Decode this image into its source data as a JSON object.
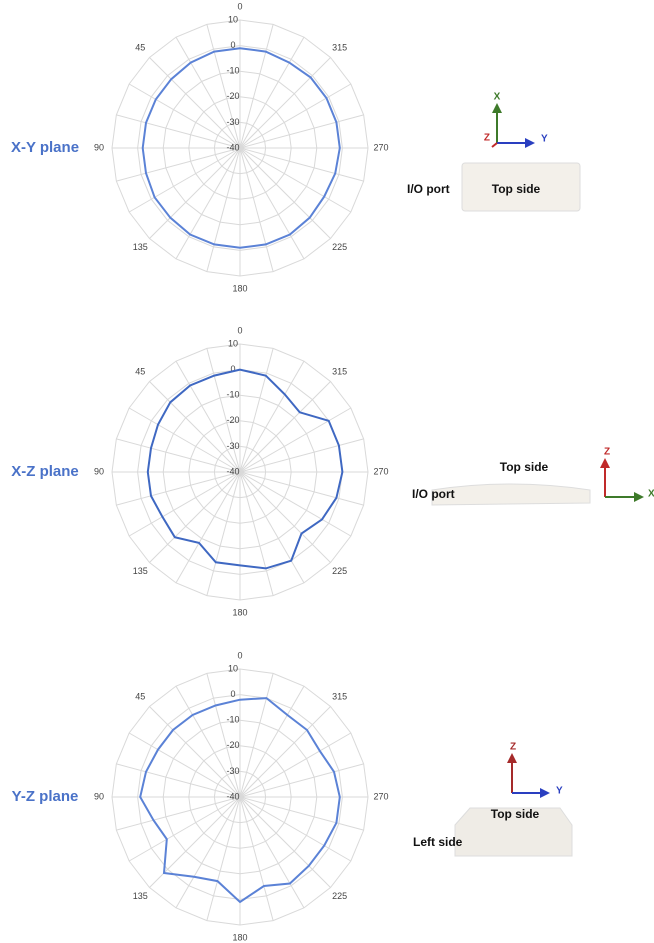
{
  "chart_data": [
    {
      "type": "radar",
      "title": "X-Y plane",
      "color": "#5b82d6",
      "theta": [
        0,
        15,
        30,
        45,
        60,
        75,
        90,
        105,
        120,
        135,
        150,
        165,
        180,
        195,
        210,
        225,
        240,
        255,
        270,
        285,
        300,
        315,
        330,
        345
      ],
      "theta_ticks": [
        0,
        45,
        90,
        135,
        180,
        225,
        270,
        315
      ],
      "values": [
        -1,
        -1,
        -1.5,
        -2,
        -2,
        -2,
        -2,
        -2,
        -1.5,
        -1.5,
        -1,
        -1,
        -1,
        -1,
        -1,
        -1.5,
        -2,
        -1.5,
        -1,
        -1,
        -1,
        -1,
        -1.5,
        -1
      ],
      "rlim": [
        -40,
        10
      ],
      "rticks": [
        10,
        0,
        -10,
        -20,
        -30,
        -40
      ],
      "device_labels": [
        "I/O port",
        "Top side"
      ],
      "axis_letters": [
        "X",
        "Y",
        "Z"
      ]
    },
    {
      "type": "radar",
      "title": "X-Z plane",
      "color": "#3f68c2",
      "theta": [
        0,
        15,
        30,
        45,
        60,
        75,
        90,
        105,
        120,
        135,
        150,
        165,
        180,
        195,
        210,
        225,
        240,
        255,
        270,
        285,
        300,
        315,
        330,
        345
      ],
      "theta_ticks": [
        0,
        45,
        90,
        135,
        180,
        225,
        270,
        315
      ],
      "values": [
        0,
        -1,
        -1,
        -1.5,
        -3,
        -4,
        -4,
        -4,
        -5,
        -4,
        -8,
        -3.5,
        -3.5,
        -1,
        0,
        -6,
        -3,
        -1,
        0,
        0,
        0,
        -7,
        -5,
        -1
      ],
      "rlim": [
        -40,
        10
      ],
      "rticks": [
        10,
        0,
        -10,
        -20,
        -30,
        -40
      ],
      "device_labels": [
        "Top side",
        "I/O port"
      ],
      "axis_letters": [
        "Z",
        "X"
      ]
    },
    {
      "type": "radar",
      "title": "Y-Z plane",
      "color": "#5b82d6",
      "theta": [
        0,
        15,
        30,
        45,
        60,
        75,
        90,
        105,
        120,
        135,
        150,
        165,
        180,
        195,
        210,
        225,
        240,
        255,
        270,
        285,
        300,
        315,
        330,
        345
      ],
      "theta_ticks": [
        0,
        45,
        90,
        135,
        180,
        225,
        270,
        315
      ],
      "values": [
        -2,
        -3,
        -3,
        -3,
        -3,
        -2,
        -1,
        -5,
        -7,
        2,
        -4,
        -6,
        1,
        -4,
        -1,
        -2,
        -2,
        -1,
        -1,
        -2,
        -4,
        -3,
        -3,
        0
      ],
      "rlim": [
        -40,
        10
      ],
      "rticks": [
        10,
        0,
        -10,
        -20,
        -30,
        -40
      ],
      "device_labels": [
        "Top side",
        "Left side"
      ],
      "axis_letters": [
        "Z",
        "Y"
      ]
    }
  ]
}
